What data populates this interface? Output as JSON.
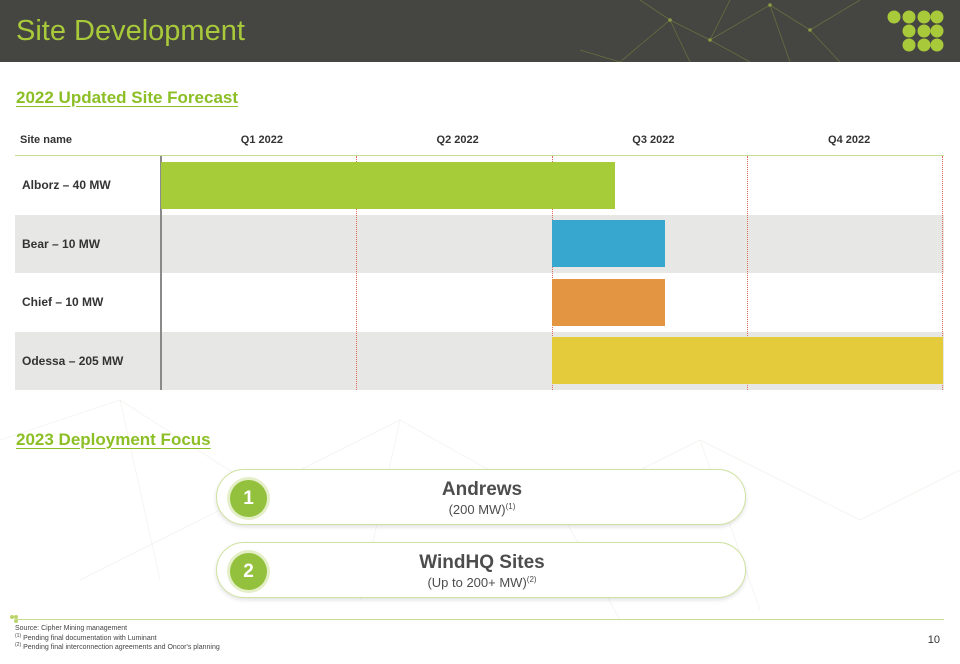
{
  "header": {
    "title": "Site Development"
  },
  "forecast": {
    "title": "2022 Updated Site Forecast",
    "columns": {
      "site": "Site name",
      "quarters": [
        "Q1 2022",
        "Q2 2022",
        "Q3 2022",
        "Q4 2022"
      ]
    },
    "rows": [
      {
        "label": "Alborz – 40 MW",
        "start_quarter": 0.0,
        "end_quarter": 2.32,
        "color": "#a6cc3a"
      },
      {
        "label": "Bear – 10 MW",
        "start_quarter": 2.0,
        "end_quarter": 2.58,
        "color": "#38a7cf"
      },
      {
        "label": "Chief – 10 MW",
        "start_quarter": 2.0,
        "end_quarter": 2.58,
        "color": "#e39542"
      },
      {
        "label": "Odessa – 205 MW",
        "start_quarter": 2.0,
        "end_quarter": 4.0,
        "color": "#e3cb3c"
      }
    ]
  },
  "deployment": {
    "title": "2023 Deployment Focus",
    "items": [
      {
        "number": "1",
        "title": "Andrews",
        "sub": "(200 MW)",
        "ref": "(1)"
      },
      {
        "number": "2",
        "title": "WindHQ Sites",
        "sub": "(Up to 200+ MW)",
        "ref": "(2)"
      }
    ]
  },
  "footer": {
    "source": "Source: Cipher Mining management",
    "note1_ref": "(1)",
    "note1": " Pending final documentation with Luminant",
    "note2_ref": "(2)",
    "note2": " Pending final interconnection agreements and Oncor's planning",
    "page": "10"
  },
  "colors": {
    "accent": "#a8c93a",
    "header_bg": "#454542",
    "row_shade": "#e7e8e5"
  }
}
